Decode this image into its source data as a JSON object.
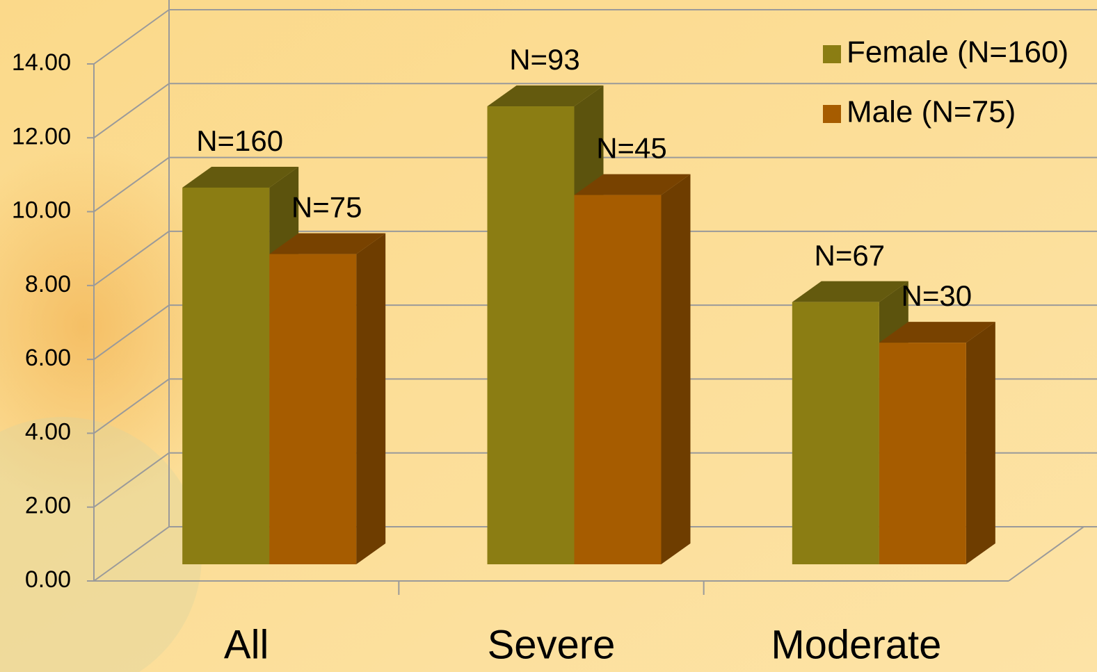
{
  "chart_data": {
    "type": "bar3d",
    "categories": [
      "All",
      "Severe",
      "Moderate"
    ],
    "series": [
      {
        "name": "Female (N=160)",
        "color": "#8b7d13",
        "values": [
          10.2,
          12.4,
          7.1
        ],
        "data_labels": [
          "N=160",
          "N=93",
          "N=67"
        ]
      },
      {
        "name": "Male (N=75)",
        "color": "#a65c00",
        "values": [
          8.4,
          10.0,
          6.0
        ],
        "data_labels": [
          "N=75",
          "N=45",
          "N=30"
        ]
      }
    ],
    "ylim": [
      0,
      14
    ],
    "yticks": [
      {
        "value": 0,
        "label": "0.00"
      },
      {
        "value": 2,
        "label": "2.00"
      },
      {
        "value": 4,
        "label": "4.00"
      },
      {
        "value": 6,
        "label": "6.00"
      },
      {
        "value": 8,
        "label": "8.00"
      },
      {
        "value": 10,
        "label": "10.00"
      },
      {
        "value": 12,
        "label": "12.00"
      },
      {
        "value": 14,
        "label": "14.00"
      }
    ],
    "grid": true,
    "legend": "top-right"
  }
}
